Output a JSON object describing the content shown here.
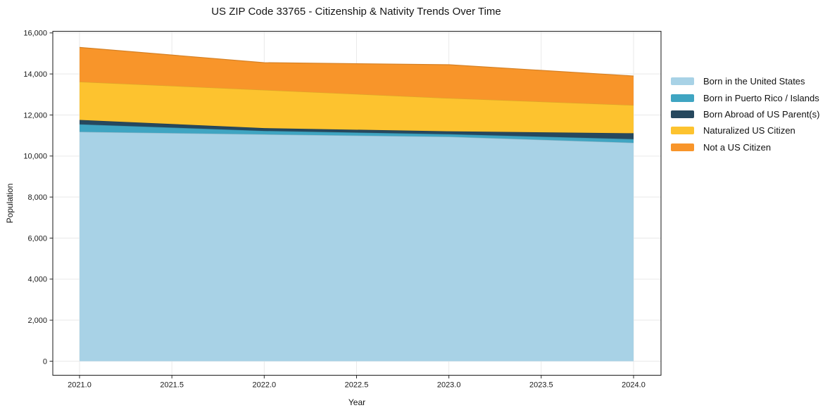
{
  "figure": {
    "title": "US ZIP Code 33765 - Citizenship & Nativity Trends Over Time",
    "xlabel": "Year",
    "ylabel": "Population"
  },
  "chart_data": {
    "type": "area",
    "stacked": true,
    "title": "US ZIP Code 33765 - Citizenship & Nativity Trends Over Time",
    "xlabel": "Year",
    "ylabel": "Population",
    "x": [
      2021,
      2022,
      2023,
      2024
    ],
    "series": [
      {
        "name": "Born in the United States",
        "color": "#a8d2e6",
        "values": [
          11180,
          11055,
          10940,
          10645
        ]
      },
      {
        "name": "Born in Puerto Rico / Islands",
        "color": "#3fa5c2",
        "values": [
          365,
          170,
          125,
          180
        ]
      },
      {
        "name": "Born Abroad of US Parent(s)",
        "color": "#26485e",
        "values": [
          215,
          135,
          140,
          285
        ]
      },
      {
        "name": "Naturalized US Citizen",
        "color": "#fdc32f",
        "values": [
          1860,
          1860,
          1615,
          1370
        ]
      },
      {
        "name": "Not a US Citizen",
        "color": "#f8952a",
        "values": [
          1675,
          1330,
          1630,
          1420
        ]
      }
    ],
    "stack_totals": [
      15295,
      14550,
      14450,
      13900
    ],
    "x_ticks": [
      2021.0,
      2021.5,
      2022.0,
      2022.5,
      2023.0,
      2023.5,
      2024.0
    ],
    "x_tick_labels": [
      "2021.0",
      "2021.5",
      "2022.0",
      "2022.5",
      "2023.0",
      "2023.5",
      "2024.0"
    ],
    "y_ticks": [
      0,
      2000,
      4000,
      6000,
      8000,
      10000,
      12000,
      14000,
      16000
    ],
    "y_tick_labels": [
      "0",
      "2,000",
      "4,000",
      "6,000",
      "8,000",
      "10,000",
      "12,000",
      "14,000",
      "16,000"
    ],
    "ylim": [
      0,
      16000
    ],
    "xlim": [
      2020.85,
      2024.15
    ],
    "grid": true,
    "legend_position": "right",
    "colors": {
      "grid": "#e9e9e9",
      "spine": "#2a2a2a",
      "tick_text": "#1a1a1a"
    }
  }
}
